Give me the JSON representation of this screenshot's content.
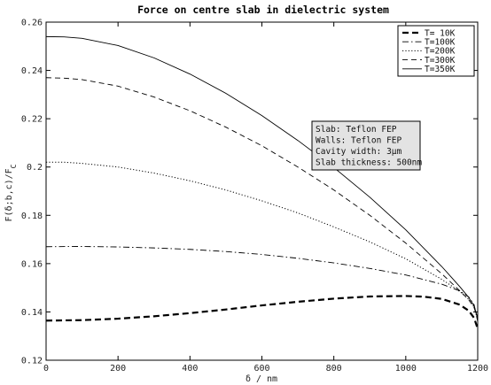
{
  "chart_data": {
    "type": "line",
    "title": "Force on centre slab in dielectric system",
    "xlabel": "δ / nm",
    "ylabel": "F(δ;b,c)/F",
    "ylabel_sub": "C",
    "xlim": [
      0,
      1200
    ],
    "ylim": [
      0.12,
      0.26
    ],
    "xticks": [
      0,
      200,
      400,
      600,
      800,
      1000,
      1200
    ],
    "yticks": [
      0.12,
      0.14,
      0.16,
      0.18,
      0.2,
      0.22,
      0.24,
      0.26
    ],
    "ytick_labels": [
      "0.12",
      "0.14",
      "0.16",
      "0.18",
      "0.2",
      "0.22",
      "0.24",
      "0.26"
    ],
    "grid": false,
    "legend_position": "top-right",
    "series": [
      {
        "name": "T= 10K",
        "style": "thick-dashed",
        "x": [
          0,
          100,
          200,
          300,
          400,
          500,
          600,
          700,
          800,
          900,
          1000,
          1050,
          1100,
          1150,
          1175,
          1190,
          1200
        ],
        "y": [
          0.1364,
          0.1366,
          0.1372,
          0.1382,
          0.1395,
          0.141,
          0.1427,
          0.1442,
          0.1455,
          0.1464,
          0.1466,
          0.1463,
          0.1454,
          0.143,
          0.1405,
          0.1375,
          0.133
        ]
      },
      {
        "name": "T=100K",
        "style": "dash-dot",
        "x": [
          0,
          100,
          200,
          300,
          400,
          500,
          600,
          700,
          800,
          900,
          1000,
          1100,
          1150,
          1175,
          1190,
          1200
        ],
        "y": [
          0.167,
          0.1671,
          0.1669,
          0.1665,
          0.1659,
          0.165,
          0.1638,
          0.1622,
          0.1603,
          0.158,
          0.1553,
          0.1515,
          0.1487,
          0.1462,
          0.143,
          0.136
        ]
      },
      {
        "name": "T=200K",
        "style": "dotted",
        "x": [
          0,
          50,
          100,
          200,
          300,
          400,
          500,
          600,
          700,
          800,
          900,
          1000,
          1100,
          1150,
          1175,
          1190,
          1200
        ],
        "y": [
          0.202,
          0.202,
          0.2015,
          0.2,
          0.1975,
          0.1943,
          0.1905,
          0.186,
          0.181,
          0.1752,
          0.169,
          0.162,
          0.1535,
          0.1485,
          0.1452,
          0.142,
          0.1365
        ]
      },
      {
        "name": "T=300K",
        "style": "dashed",
        "x": [
          0,
          50,
          100,
          200,
          300,
          400,
          500,
          600,
          700,
          800,
          900,
          1000,
          1100,
          1150,
          1175,
          1190,
          1200
        ],
        "y": [
          0.237,
          0.2368,
          0.2362,
          0.2335,
          0.229,
          0.2233,
          0.2165,
          0.2088,
          0.2,
          0.1905,
          0.18,
          0.1685,
          0.1558,
          0.1488,
          0.145,
          0.1418,
          0.137
        ]
      },
      {
        "name": "T=350K",
        "style": "solid",
        "x": [
          0,
          50,
          100,
          200,
          300,
          400,
          500,
          600,
          700,
          800,
          900,
          1000,
          1100,
          1150,
          1175,
          1190,
          1200
        ],
        "y": [
          0.254,
          0.2539,
          0.2533,
          0.2503,
          0.2452,
          0.2385,
          0.2305,
          0.2213,
          0.211,
          0.1998,
          0.1875,
          0.174,
          0.1588,
          0.1505,
          0.146,
          0.1425,
          0.1375
        ]
      }
    ],
    "annotation": [
      "Slab: Teflon FEP",
      "Walls: Teflon FEP",
      "Cavity width: 3μm",
      "Slab thickness: 500nm"
    ]
  }
}
